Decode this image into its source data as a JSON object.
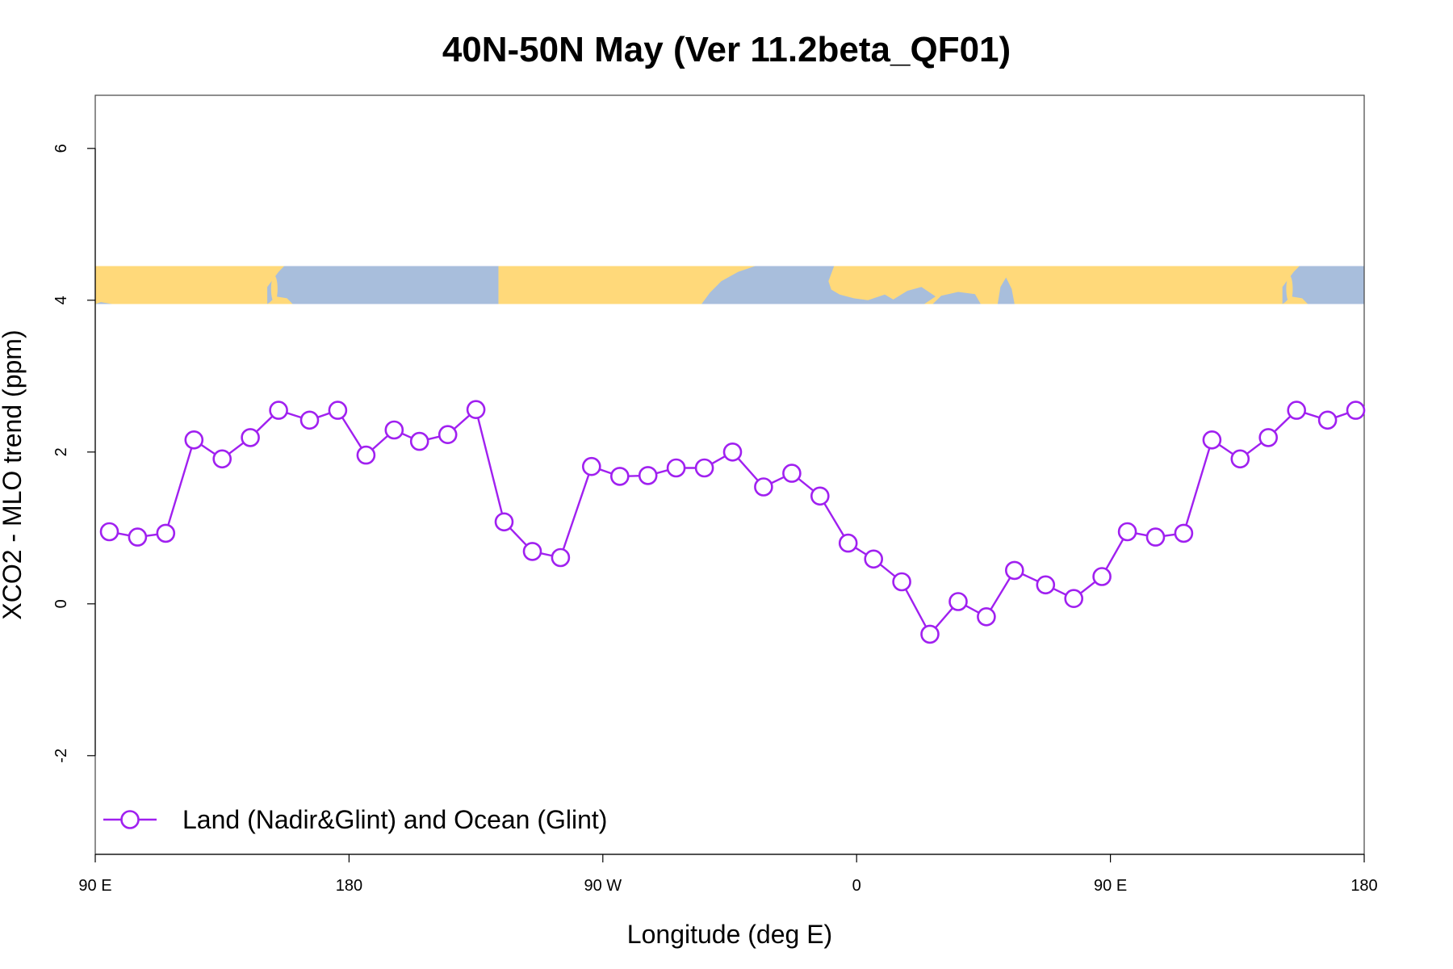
{
  "chart_data": {
    "type": "line",
    "title": "40N-50N May (Ver 11.2beta_QF01)",
    "xlabel": "Longitude (deg E)",
    "ylabel": "XCO2 - MLO trend (ppm)",
    "xlim": [
      90,
      540
    ],
    "ylim": [
      -3.3,
      6.7
    ],
    "x_ticks": [
      {
        "value": 90,
        "label": "90 E"
      },
      {
        "value": 180,
        "label": "180"
      },
      {
        "value": 270,
        "label": "90 W"
      },
      {
        "value": 360,
        "label": "0"
      },
      {
        "value": 450,
        "label": "90 E"
      },
      {
        "value": 540,
        "label": "180"
      }
    ],
    "y_ticks": [
      {
        "value": -2,
        "label": "-2"
      },
      {
        "value": 0,
        "label": "0"
      },
      {
        "value": 2,
        "label": "2"
      },
      {
        "value": 4,
        "label": "4"
      },
      {
        "value": 6,
        "label": "6"
      }
    ],
    "grid": false,
    "legend_position": "bottom-left",
    "map_strip": {
      "y_range": [
        3.95,
        4.45
      ],
      "land_color": "#FFD97A",
      "ocean_color": "#A8BEDC"
    },
    "series": [
      {
        "name": "Land (Nadir&Glint) and Ocean (Glint)",
        "color": "#A020F0",
        "x": [
          95,
          105,
          115,
          125,
          135,
          145,
          155,
          166,
          176,
          186,
          196,
          205,
          215,
          225,
          235,
          245,
          255,
          266,
          276,
          286,
          296,
          306,
          316,
          327,
          337,
          347,
          357,
          366,
          376,
          386,
          396,
          406,
          416,
          427,
          437,
          447,
          456,
          466,
          476,
          486,
          496,
          506,
          516,
          527,
          537
        ],
        "y": [
          0.95,
          0.88,
          0.93,
          2.16,
          1.91,
          2.19,
          2.55,
          2.42,
          2.55,
          1.96,
          2.29,
          2.14,
          2.23,
          2.56,
          1.08,
          0.69,
          0.61,
          1.81,
          1.68,
          1.69,
          1.79,
          1.79,
          2.0,
          1.54,
          1.72,
          1.42,
          0.8,
          0.59,
          0.29,
          -0.4,
          0.03,
          -0.17,
          0.44,
          0.25,
          0.07,
          0.36,
          0.95,
          0.88,
          0.93,
          2.16,
          1.91,
          2.19,
          2.55,
          2.42,
          2.55
        ]
      }
    ]
  }
}
